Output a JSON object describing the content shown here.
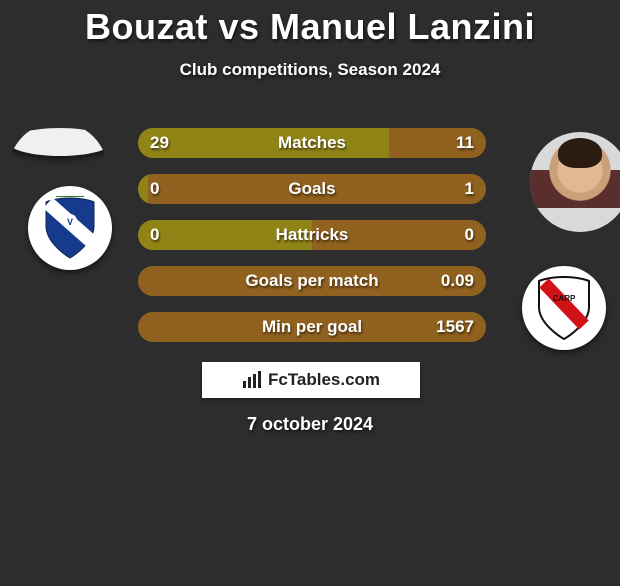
{
  "title": "Bouzat vs Manuel Lanzini",
  "subtitle": "Club competitions, Season 2024",
  "date": "7 october 2024",
  "attribution": "FcTables.com",
  "colors": {
    "left": "#918416",
    "right": "#91611f",
    "bar_bg": "#3a3a3a",
    "background": "#2d2d2d",
    "text": "#ffffff"
  },
  "club_left": {
    "name": "Vélez Sarsfield",
    "shield_bg": "#ffffff",
    "shield_accent": "#163a8c",
    "sash": "#ffffff"
  },
  "club_right": {
    "name": "River Plate",
    "shield_bg": "#ffffff",
    "sash": "#d01217",
    "border": "#111111"
  },
  "player_left": {
    "name": "Bouzat",
    "has_photo": false
  },
  "player_right": {
    "name": "Manuel Lanzini",
    "has_photo": true
  },
  "bars": [
    {
      "label": "Matches",
      "left": "29",
      "right": "11",
      "left_pct": 72,
      "right_pct": 28
    },
    {
      "label": "Goals",
      "left": "0",
      "right": "1",
      "left_pct": 3,
      "right_pct": 97
    },
    {
      "label": "Hattricks",
      "left": "0",
      "right": "0",
      "left_pct": 50,
      "right_pct": 50
    },
    {
      "label": "Goals per match",
      "left": "",
      "right": "0.09",
      "left_pct": 0,
      "right_pct": 100
    },
    {
      "label": "Min per goal",
      "left": "",
      "right": "1567",
      "left_pct": 0,
      "right_pct": 100
    }
  ]
}
